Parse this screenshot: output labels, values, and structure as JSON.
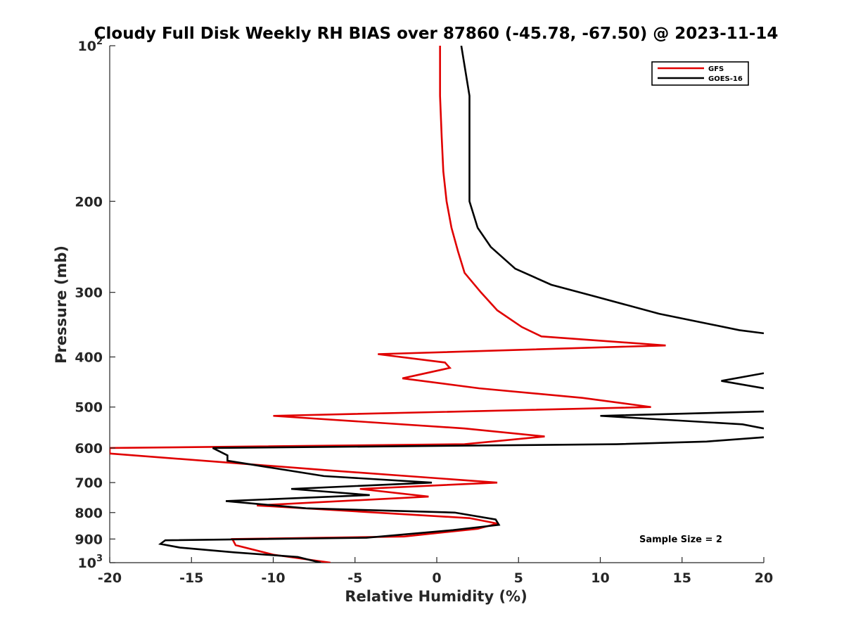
{
  "chart_data": {
    "type": "line",
    "title": "Cloudy Full Disk Weekly RH BIAS over 87860 (-45.78, -67.50) @ 2023-11-14",
    "xlabel": "Relative Humidity (%)",
    "ylabel": "Pressure (mb)",
    "xlim": [
      -20,
      20
    ],
    "ylim": [
      100,
      1000
    ],
    "y_scale": "log",
    "y_reversed": true,
    "x_ticks": [
      -20,
      -15,
      -10,
      -5,
      0,
      5,
      10,
      15,
      20
    ],
    "x_tick_labels": [
      "-20",
      "-15",
      "-10",
      "-5",
      "0",
      "5",
      "10",
      "15",
      "20"
    ],
    "y_ticks": [
      100,
      200,
      300,
      400,
      500,
      600,
      700,
      800,
      900,
      1000
    ],
    "y_tick_labels": [
      {
        "base": "10",
        "exp": "2"
      },
      {
        "base": "200",
        "exp": ""
      },
      {
        "base": "300",
        "exp": ""
      },
      {
        "base": "400",
        "exp": ""
      },
      {
        "base": "500",
        "exp": ""
      },
      {
        "base": "600",
        "exp": ""
      },
      {
        "base": "700",
        "exp": ""
      },
      {
        "base": "800",
        "exp": ""
      },
      {
        "base": "900",
        "exp": ""
      },
      {
        "base": "10",
        "exp": "3"
      }
    ],
    "grid": false,
    "legend_position": "top-right",
    "annotation": "Sample Size = 2",
    "series": [
      {
        "name": "GFS",
        "color": "#e00000",
        "points": [
          [
            0.2,
            100
          ],
          [
            0.2,
            125
          ],
          [
            0.3,
            150
          ],
          [
            0.4,
            175
          ],
          [
            0.6,
            200
          ],
          [
            0.9,
            225
          ],
          [
            1.3,
            250
          ],
          [
            1.7,
            275
          ],
          [
            2.7,
            300
          ],
          [
            3.7,
            325
          ],
          [
            5.2,
            350
          ],
          [
            6.4,
            365
          ],
          [
            14.0,
            380
          ],
          [
            -3.6,
            395
          ],
          [
            0.5,
            410
          ],
          [
            0.8,
            420
          ],
          [
            -2.1,
            440
          ],
          [
            2.6,
            460
          ],
          [
            8.9,
            480
          ],
          [
            13.1,
            500
          ],
          [
            -10.0,
            520
          ],
          [
            1.7,
            550
          ],
          [
            6.6,
            570
          ],
          [
            1.7,
            590
          ],
          [
            -20.0,
            600
          ],
          [
            -20.0,
            615
          ],
          [
            -6.0,
            665
          ],
          [
            3.7,
            700
          ],
          [
            -4.7,
            720
          ],
          [
            -0.5,
            745
          ],
          [
            -11.0,
            775
          ],
          [
            2.0,
            820
          ],
          [
            3.7,
            840
          ],
          [
            2.5,
            860
          ],
          [
            -2.0,
            890
          ],
          [
            -12.5,
            900
          ],
          [
            -12.3,
            925
          ],
          [
            -10.0,
            965
          ],
          [
            -6.5,
            1000
          ]
        ]
      },
      {
        "name": "GOES-16",
        "color": "#000000",
        "points": [
          [
            1.5,
            100
          ],
          [
            2.0,
            125
          ],
          [
            2.0,
            150
          ],
          [
            2.0,
            175
          ],
          [
            2.0,
            200
          ],
          [
            2.5,
            225
          ],
          [
            3.3,
            245
          ],
          [
            4.8,
            270
          ],
          [
            7.0,
            290
          ],
          [
            9.6,
            305
          ],
          [
            13.6,
            330
          ],
          [
            18.5,
            355
          ],
          [
            20.0,
            360
          ],
          [
            null,
            null
          ],
          [
            20.0,
            430
          ],
          [
            17.4,
            445
          ],
          [
            20.0,
            460
          ],
          [
            null,
            null
          ],
          [
            20.0,
            510
          ],
          [
            10.0,
            520
          ],
          [
            18.7,
            540
          ],
          [
            20.0,
            550
          ],
          [
            null,
            null
          ],
          [
            20.0,
            572
          ],
          [
            16.5,
            583
          ],
          [
            11.0,
            590
          ],
          [
            -13.7,
            600
          ],
          [
            -12.8,
            620
          ],
          [
            -12.8,
            635
          ],
          [
            -6.9,
            680
          ],
          [
            -0.3,
            700
          ],
          [
            -8.9,
            720
          ],
          [
            -4.1,
            740
          ],
          [
            -12.9,
            760
          ],
          [
            -8.0,
            785
          ],
          [
            1.1,
            800
          ],
          [
            3.6,
            825
          ],
          [
            3.8,
            845
          ],
          [
            1.0,
            865
          ],
          [
            -4.3,
            895
          ],
          [
            -16.6,
            905
          ],
          [
            -16.9,
            920
          ],
          [
            -15.7,
            935
          ],
          [
            -12.4,
            955
          ],
          [
            -8.5,
            975
          ],
          [
            -7.1,
            1000
          ]
        ]
      }
    ]
  }
}
